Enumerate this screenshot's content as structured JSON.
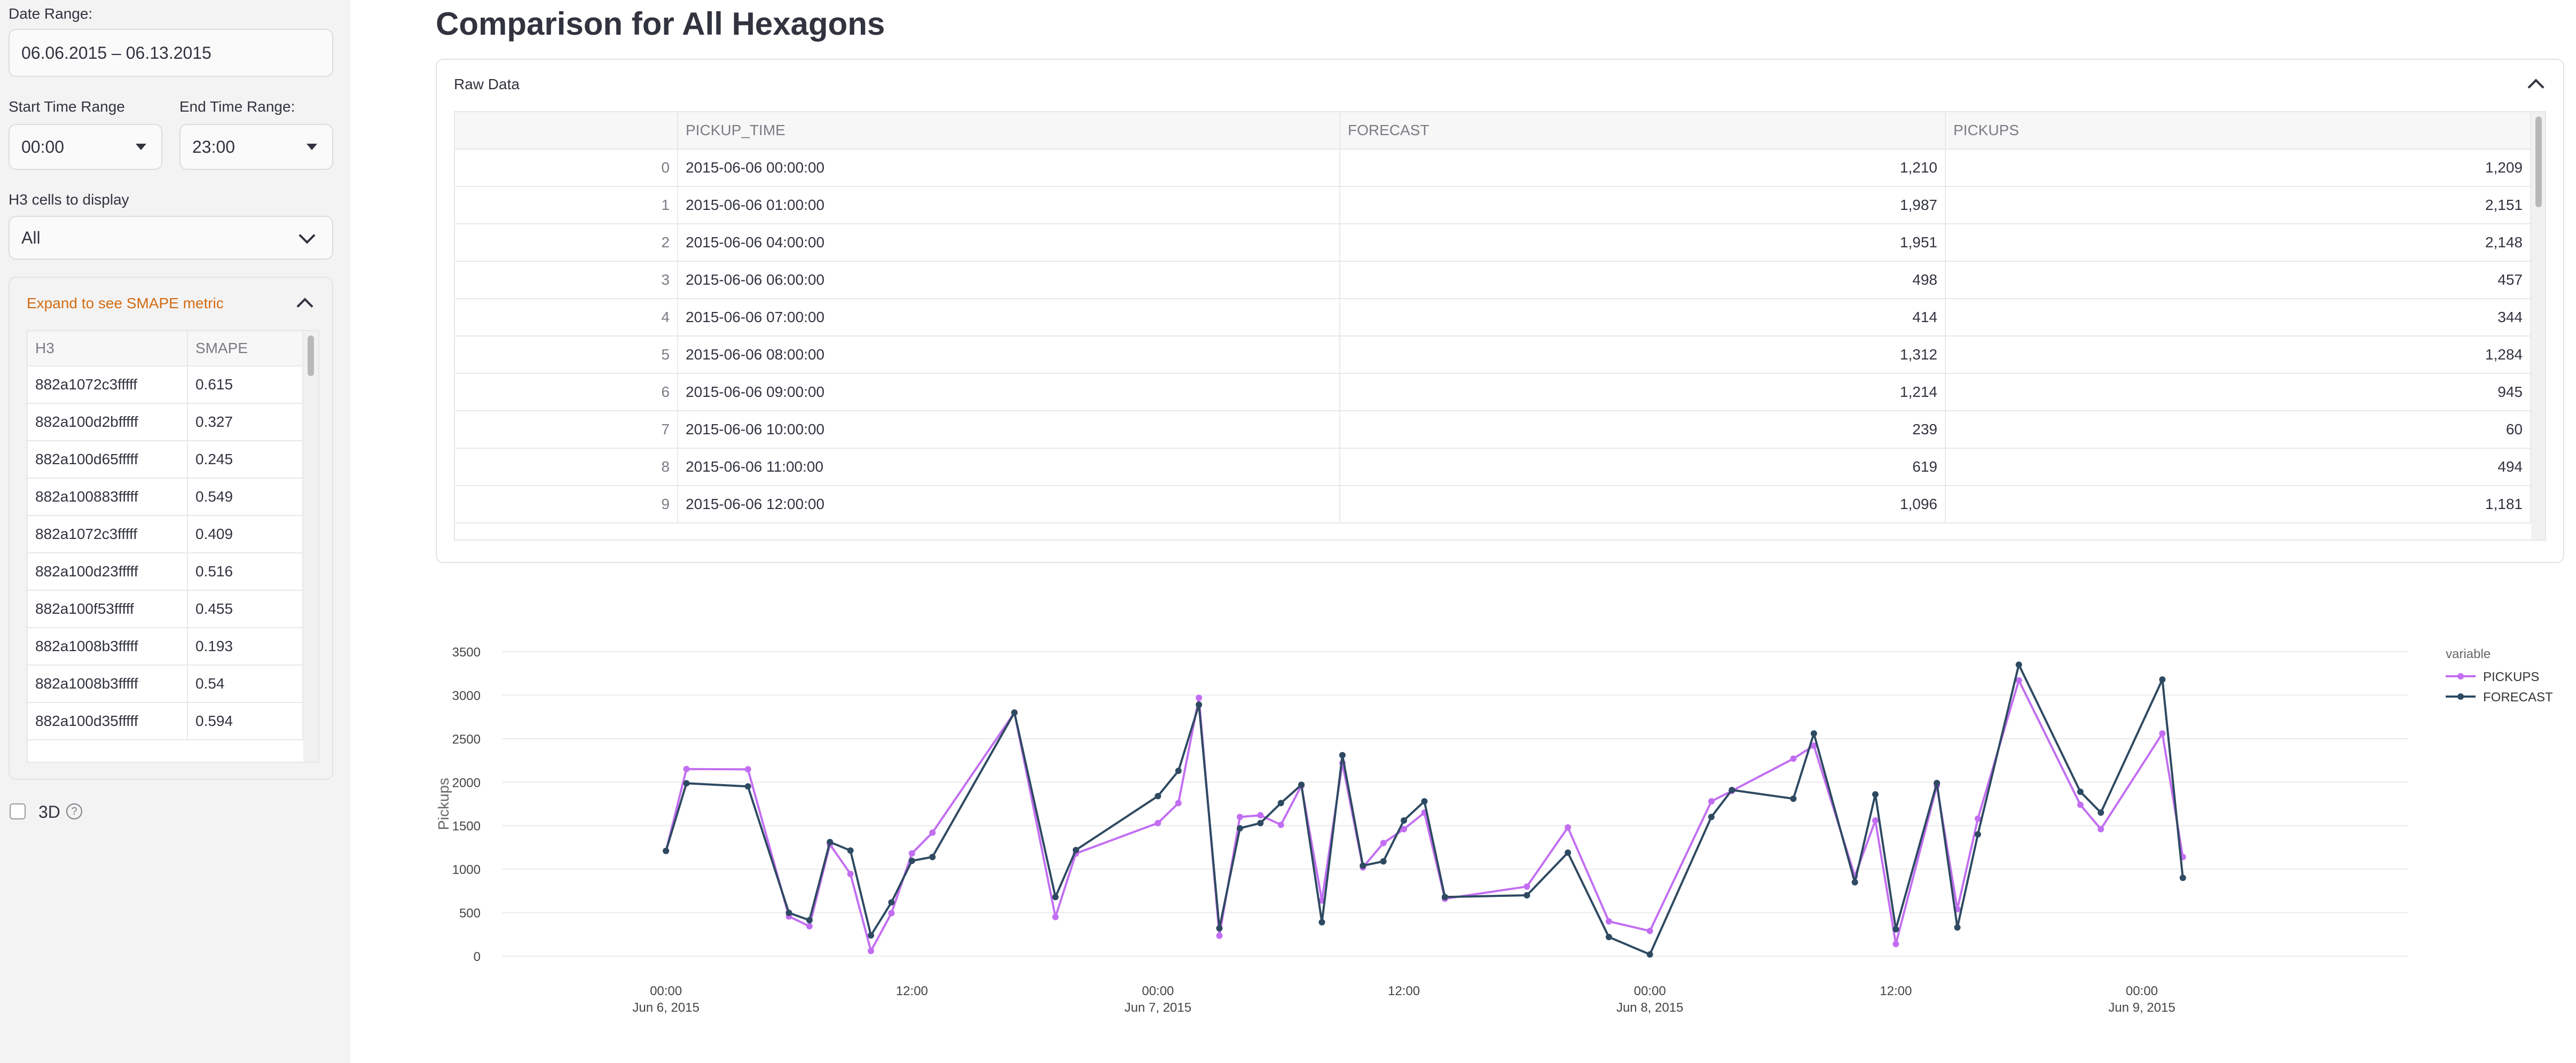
{
  "sidebar": {
    "date_range_label": "Date Range:",
    "date_range_value": "06.06.2015 – 06.13.2015",
    "start_time_label": "Start Time Range",
    "start_time_value": "00:00",
    "end_time_label": "End Time Range:",
    "end_time_value": "23:00",
    "h3_label": "H3 cells to display",
    "h3_value": "All",
    "smape_expander_label": "Expand to see SMAPE metric",
    "smape_table": {
      "headers": [
        "H3",
        "SMAPE"
      ],
      "rows": [
        [
          "882a1072c3fffff",
          "0.615"
        ],
        [
          "882a100d2bfffff",
          "0.327"
        ],
        [
          "882a100d65fffff",
          "0.245"
        ],
        [
          "882a100883fffff",
          "0.549"
        ],
        [
          "882a1072c3fffff",
          "0.409"
        ],
        [
          "882a100d23fffff",
          "0.516"
        ],
        [
          "882a100f53fffff",
          "0.455"
        ],
        [
          "882a1008b3fffff",
          "0.193"
        ],
        [
          "882a1008b3fffff",
          "0.54"
        ],
        [
          "882a100d35fffff",
          "0.594"
        ]
      ]
    },
    "three_d_label": "3D",
    "help_icon_glyph": "?"
  },
  "main": {
    "title": "Comparison for All Hexagons",
    "raw_data_label": "Raw Data",
    "raw_table": {
      "headers": [
        "",
        "PICKUP_TIME",
        "FORECAST",
        "PICKUPS"
      ],
      "rows": [
        [
          "0",
          "2015-06-06 00:00:00",
          "1,210",
          "1,209"
        ],
        [
          "1",
          "2015-06-06 01:00:00",
          "1,987",
          "2,151"
        ],
        [
          "2",
          "2015-06-06 04:00:00",
          "1,951",
          "2,148"
        ],
        [
          "3",
          "2015-06-06 06:00:00",
          "498",
          "457"
        ],
        [
          "4",
          "2015-06-06 07:00:00",
          "414",
          "344"
        ],
        [
          "5",
          "2015-06-06 08:00:00",
          "1,312",
          "1,284"
        ],
        [
          "6",
          "2015-06-06 09:00:00",
          "1,214",
          "945"
        ],
        [
          "7",
          "2015-06-06 10:00:00",
          "239",
          "60"
        ],
        [
          "8",
          "2015-06-06 11:00:00",
          "619",
          "494"
        ],
        [
          "9",
          "2015-06-06 12:00:00",
          "1,096",
          "1,181"
        ]
      ]
    }
  },
  "chart_data": {
    "type": "line",
    "ylabel": "Pickups",
    "xlabel": "",
    "ylim": [
      0,
      3500
    ],
    "yticks": [
      0,
      500,
      1000,
      1500,
      2000,
      2500,
      3000,
      3500
    ],
    "xticks": [
      {
        "hour": 0,
        "line1": "00:00",
        "line2": "Jun 6, 2015"
      },
      {
        "hour": 12,
        "line1": "12:00",
        "line2": ""
      },
      {
        "hour": 24,
        "line1": "00:00",
        "line2": "Jun 7, 2015"
      },
      {
        "hour": 36,
        "line1": "12:00",
        "line2": ""
      },
      {
        "hour": 48,
        "line1": "00:00",
        "line2": "Jun 8, 2015"
      },
      {
        "hour": 60,
        "line1": "12:00",
        "line2": ""
      },
      {
        "hour": 72,
        "line1": "00:00",
        "line2": "Jun 9, 2015"
      }
    ],
    "legend_title": "variable",
    "legend_placement": "top-right",
    "grid": true,
    "series": [
      {
        "name": "PICKUPS",
        "color": "#c26ef2",
        "points": [
          [
            0,
            1209
          ],
          [
            1,
            2151
          ],
          [
            4,
            2148
          ],
          [
            6,
            457
          ],
          [
            7,
            344
          ],
          [
            8,
            1284
          ],
          [
            9,
            945
          ],
          [
            10,
            60
          ],
          [
            11,
            494
          ],
          [
            12,
            1181
          ],
          [
            13,
            1420
          ],
          [
            17,
            2800
          ],
          [
            19,
            450
          ],
          [
            20,
            1180
          ],
          [
            24,
            1530
          ],
          [
            25,
            1760
          ],
          [
            26,
            2970
          ],
          [
            27,
            235
          ],
          [
            28,
            1600
          ],
          [
            29,
            1620
          ],
          [
            30,
            1510
          ],
          [
            31,
            1960
          ],
          [
            32,
            640
          ],
          [
            33,
            2220
          ],
          [
            34,
            1020
          ],
          [
            35,
            1300
          ],
          [
            36,
            1460
          ],
          [
            37,
            1650
          ],
          [
            38,
            660
          ],
          [
            42,
            800
          ],
          [
            44,
            1480
          ],
          [
            46,
            400
          ],
          [
            48,
            290
          ],
          [
            51,
            1780
          ],
          [
            52,
            1900
          ],
          [
            55,
            2270
          ],
          [
            56,
            2420
          ],
          [
            58,
            920
          ],
          [
            59,
            1560
          ],
          [
            60,
            140
          ],
          [
            62,
            1960
          ],
          [
            63,
            540
          ],
          [
            64,
            1580
          ],
          [
            66,
            3170
          ],
          [
            69,
            1740
          ],
          [
            70,
            1460
          ],
          [
            73,
            2560
          ],
          [
            74,
            1140
          ]
        ]
      },
      {
        "name": "FORECAST",
        "color": "#2e4a62",
        "points": [
          [
            0,
            1210
          ],
          [
            1,
            1987
          ],
          [
            4,
            1951
          ],
          [
            6,
            498
          ],
          [
            7,
            414
          ],
          [
            8,
            1312
          ],
          [
            9,
            1214
          ],
          [
            10,
            239
          ],
          [
            11,
            619
          ],
          [
            12,
            1096
          ],
          [
            13,
            1140
          ],
          [
            17,
            2800
          ],
          [
            19,
            680
          ],
          [
            20,
            1220
          ],
          [
            24,
            1840
          ],
          [
            25,
            2130
          ],
          [
            26,
            2890
          ],
          [
            27,
            320
          ],
          [
            28,
            1470
          ],
          [
            29,
            1530
          ],
          [
            30,
            1760
          ],
          [
            31,
            1970
          ],
          [
            32,
            390
          ],
          [
            33,
            2310
          ],
          [
            34,
            1040
          ],
          [
            35,
            1090
          ],
          [
            36,
            1560
          ],
          [
            37,
            1780
          ],
          [
            38,
            680
          ],
          [
            42,
            700
          ],
          [
            44,
            1190
          ],
          [
            46,
            220
          ],
          [
            48,
            20
          ],
          [
            51,
            1600
          ],
          [
            52,
            1910
          ],
          [
            55,
            1810
          ],
          [
            56,
            2560
          ],
          [
            58,
            850
          ],
          [
            59,
            1860
          ],
          [
            60,
            310
          ],
          [
            62,
            1990
          ],
          [
            63,
            330
          ],
          [
            64,
            1400
          ],
          [
            66,
            3350
          ],
          [
            69,
            1890
          ],
          [
            70,
            1650
          ],
          [
            73,
            3180
          ],
          [
            74,
            900
          ]
        ]
      }
    ]
  }
}
